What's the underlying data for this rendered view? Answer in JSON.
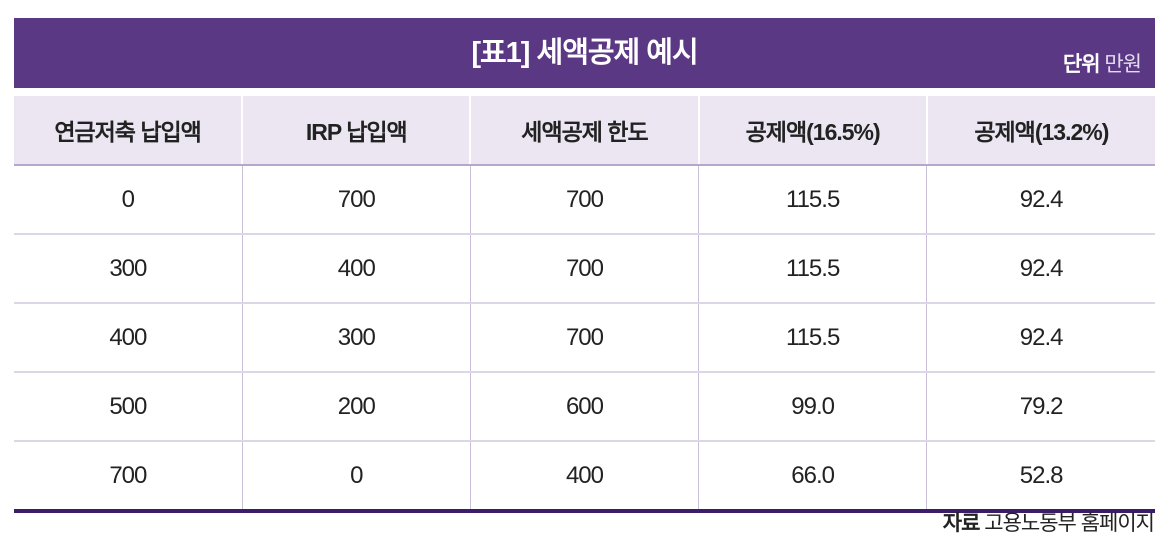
{
  "table": {
    "title": "[표1] 세액공제 예시",
    "unit_label": "단위",
    "unit_value": "만원",
    "headers": [
      "연금저축 납입액",
      "IRP 납입액",
      "세액공제 한도",
      "공제액(16.5%)",
      "공제액(13.2%)"
    ],
    "rows": [
      [
        "0",
        "700",
        "700",
        "115.5",
        "92.4"
      ],
      [
        "300",
        "400",
        "700",
        "115.5",
        "92.4"
      ],
      [
        "400",
        "300",
        "700",
        "115.5",
        "92.4"
      ],
      [
        "500",
        "200",
        "600",
        "99.0",
        "79.2"
      ],
      [
        "700",
        "0",
        "400",
        "66.0",
        "52.8"
      ]
    ],
    "source_label": "자료",
    "source_value": "고용노동부 홈페이지"
  },
  "colors": {
    "title_band": "#5a3884",
    "header_bg": "#ebe6f1",
    "bottom_rule": "#3a1d66"
  }
}
